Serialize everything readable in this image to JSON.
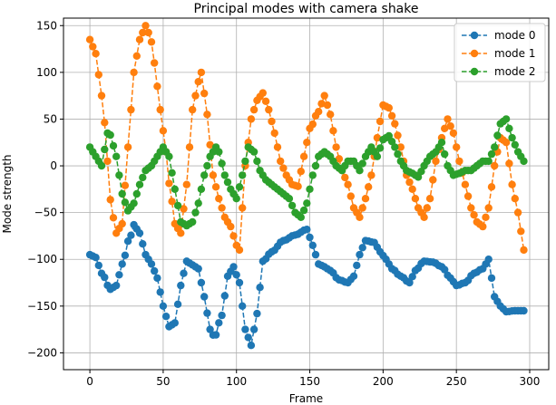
{
  "chart_data": {
    "type": "line",
    "title": "Principal modes with camera shake",
    "xlabel": "Frame",
    "ylabel": "Mode strength",
    "xlim": [
      -18,
      313
    ],
    "ylim": [
      -218,
      158
    ],
    "xticks": [
      0,
      50,
      100,
      150,
      200,
      250,
      300
    ],
    "yticks": [
      -200,
      -150,
      -100,
      -50,
      0,
      50,
      100,
      150
    ],
    "grid": true,
    "legend_position": "top-right",
    "marker": "circle",
    "linestyle": "dashed",
    "frame_step": 2,
    "series": [
      {
        "name": "mode 0",
        "color": "#1f77b4",
        "keypoints": [
          [
            0,
            -95
          ],
          [
            4,
            -98
          ],
          [
            8,
            -115
          ],
          [
            14,
            -132
          ],
          [
            18,
            -128
          ],
          [
            22,
            -105
          ],
          [
            27,
            -78
          ],
          [
            30,
            -63
          ],
          [
            34,
            -72
          ],
          [
            38,
            -95
          ],
          [
            42,
            -105
          ],
          [
            46,
            -120
          ],
          [
            50,
            -150
          ],
          [
            54,
            -172
          ],
          [
            58,
            -168
          ],
          [
            62,
            -128
          ],
          [
            66,
            -102
          ],
          [
            70,
            -106
          ],
          [
            74,
            -110
          ],
          [
            78,
            -140
          ],
          [
            82,
            -175
          ],
          [
            85,
            -183
          ],
          [
            90,
            -160
          ],
          [
            94,
            -118
          ],
          [
            98,
            -108
          ],
          [
            102,
            -125
          ],
          [
            106,
            -175
          ],
          [
            110,
            -192
          ],
          [
            114,
            -158
          ],
          [
            118,
            -102
          ],
          [
            124,
            -92
          ],
          [
            132,
            -80
          ],
          [
            140,
            -74
          ],
          [
            148,
            -68
          ],
          [
            152,
            -85
          ],
          [
            156,
            -105
          ],
          [
            160,
            -108
          ],
          [
            164,
            -112
          ],
          [
            170,
            -122
          ],
          [
            176,
            -125
          ],
          [
            180,
            -118
          ],
          [
            184,
            -95
          ],
          [
            188,
            -80
          ],
          [
            194,
            -82
          ],
          [
            198,
            -92
          ],
          [
            202,
            -100
          ],
          [
            206,
            -110
          ],
          [
            212,
            -118
          ],
          [
            218,
            -125
          ],
          [
            222,
            -112
          ],
          [
            228,
            -102
          ],
          [
            234,
            -103
          ],
          [
            240,
            -108
          ],
          [
            246,
            -120
          ],
          [
            250,
            -128
          ],
          [
            256,
            -125
          ],
          [
            262,
            -115
          ],
          [
            268,
            -110
          ],
          [
            272,
            -100
          ],
          [
            276,
            -140
          ],
          [
            280,
            -150
          ],
          [
            284,
            -156
          ],
          [
            290,
            -155
          ],
          [
            296,
            -155
          ]
        ]
      },
      {
        "name": "mode 1",
        "color": "#ff7f0e",
        "keypoints": [
          [
            0,
            135
          ],
          [
            4,
            120
          ],
          [
            7,
            90
          ],
          [
            9,
            60
          ],
          [
            12,
            5
          ],
          [
            15,
            -50
          ],
          [
            18,
            -72
          ],
          [
            22,
            -62
          ],
          [
            26,
            20
          ],
          [
            30,
            100
          ],
          [
            34,
            135
          ],
          [
            38,
            150
          ],
          [
            41,
            140
          ],
          [
            44,
            110
          ],
          [
            48,
            60
          ],
          [
            52,
            15
          ],
          [
            55,
            -30
          ],
          [
            58,
            -62
          ],
          [
            62,
            -72
          ],
          [
            66,
            -20
          ],
          [
            70,
            60
          ],
          [
            74,
            90
          ],
          [
            76,
            100
          ],
          [
            80,
            55
          ],
          [
            84,
            -10
          ],
          [
            88,
            -35
          ],
          [
            92,
            -55
          ],
          [
            96,
            -65
          ],
          [
            100,
            -85
          ],
          [
            102,
            -90
          ],
          [
            106,
            0
          ],
          [
            110,
            50
          ],
          [
            114,
            70
          ],
          [
            118,
            78
          ],
          [
            122,
            60
          ],
          [
            126,
            35
          ],
          [
            130,
            5
          ],
          [
            134,
            -10
          ],
          [
            138,
            -20
          ],
          [
            142,
            -22
          ],
          [
            146,
            10
          ],
          [
            150,
            40
          ],
          [
            156,
            58
          ],
          [
            160,
            75
          ],
          [
            164,
            55
          ],
          [
            168,
            20
          ],
          [
            172,
            -5
          ],
          [
            176,
            -20
          ],
          [
            180,
            -45
          ],
          [
            184,
            -55
          ],
          [
            188,
            -35
          ],
          [
            192,
            -10
          ],
          [
            196,
            30
          ],
          [
            200,
            65
          ],
          [
            204,
            62
          ],
          [
            208,
            45
          ],
          [
            212,
            20
          ],
          [
            216,
            -10
          ],
          [
            220,
            -25
          ],
          [
            224,
            -45
          ],
          [
            228,
            -55
          ],
          [
            232,
            -35
          ],
          [
            236,
            5
          ],
          [
            240,
            30
          ],
          [
            244,
            50
          ],
          [
            248,
            35
          ],
          [
            252,
            5
          ],
          [
            256,
            -20
          ],
          [
            260,
            -45
          ],
          [
            264,
            -60
          ],
          [
            268,
            -65
          ],
          [
            272,
            -45
          ],
          [
            276,
            0
          ],
          [
            280,
            30
          ],
          [
            284,
            25
          ],
          [
            288,
            -20
          ],
          [
            292,
            -50
          ],
          [
            296,
            -90
          ]
        ]
      },
      {
        "name": "mode 2",
        "color": "#2ca02c",
        "keypoints": [
          [
            0,
            20
          ],
          [
            4,
            10
          ],
          [
            8,
            0
          ],
          [
            12,
            35
          ],
          [
            14,
            33
          ],
          [
            18,
            10
          ],
          [
            22,
            -30
          ],
          [
            26,
            -48
          ],
          [
            30,
            -40
          ],
          [
            34,
            -20
          ],
          [
            38,
            -5
          ],
          [
            42,
            0
          ],
          [
            46,
            10
          ],
          [
            50,
            20
          ],
          [
            54,
            10
          ],
          [
            58,
            -25
          ],
          [
            62,
            -60
          ],
          [
            66,
            -64
          ],
          [
            70,
            -60
          ],
          [
            74,
            -40
          ],
          [
            78,
            -10
          ],
          [
            82,
            10
          ],
          [
            86,
            20
          ],
          [
            88,
            15
          ],
          [
            92,
            -10
          ],
          [
            96,
            -25
          ],
          [
            100,
            -35
          ],
          [
            104,
            -10
          ],
          [
            108,
            20
          ],
          [
            112,
            15
          ],
          [
            116,
            -5
          ],
          [
            120,
            -15
          ],
          [
            124,
            -20
          ],
          [
            128,
            -25
          ],
          [
            132,
            -30
          ],
          [
            136,
            -35
          ],
          [
            140,
            -50
          ],
          [
            144,
            -55
          ],
          [
            148,
            -40
          ],
          [
            152,
            -10
          ],
          [
            156,
            10
          ],
          [
            160,
            15
          ],
          [
            164,
            10
          ],
          [
            168,
            0
          ],
          [
            172,
            -5
          ],
          [
            176,
            5
          ],
          [
            180,
            5
          ],
          [
            184,
            -5
          ],
          [
            188,
            10
          ],
          [
            192,
            20
          ],
          [
            196,
            10
          ],
          [
            200,
            28
          ],
          [
            204,
            32
          ],
          [
            208,
            20
          ],
          [
            212,
            5
          ],
          [
            216,
            -5
          ],
          [
            220,
            -8
          ],
          [
            224,
            -12
          ],
          [
            228,
            0
          ],
          [
            232,
            10
          ],
          [
            236,
            15
          ],
          [
            240,
            25
          ],
          [
            244,
            0
          ],
          [
            248,
            -10
          ],
          [
            252,
            -8
          ],
          [
            256,
            -5
          ],
          [
            260,
            -5
          ],
          [
            264,
            0
          ],
          [
            268,
            5
          ],
          [
            272,
            5
          ],
          [
            276,
            20
          ],
          [
            280,
            45
          ],
          [
            284,
            50
          ],
          [
            288,
            30
          ],
          [
            292,
            15
          ],
          [
            296,
            5
          ]
        ]
      }
    ]
  }
}
